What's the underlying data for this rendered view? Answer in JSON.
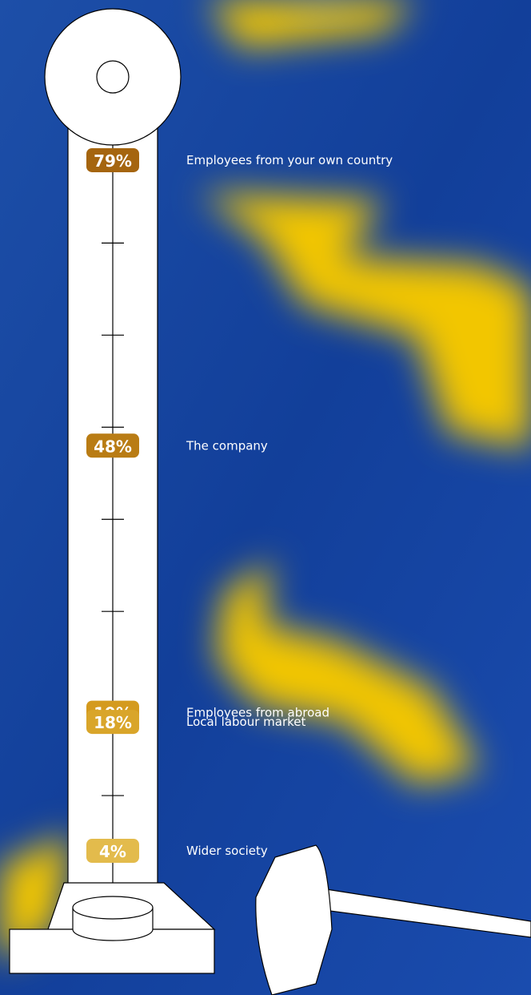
{
  "chart_data": {
    "type": "scale",
    "categories": [
      "Employees from your own country",
      "The company",
      "Employees from abroad",
      "Local labour market",
      "Wider society"
    ],
    "values": [
      79,
      48,
      19,
      18,
      4
    ],
    "value_labels": [
      "79%",
      "48%",
      "19%",
      "18%",
      "4%"
    ],
    "colors": [
      "#a5650f",
      "#b97c14",
      "#d49a1e",
      "#d9a52a",
      "#e3bb4c"
    ],
    "ylim": [
      0,
      90
    ],
    "yticks": [
      10,
      20,
      30,
      40,
      50,
      60,
      70
    ]
  }
}
